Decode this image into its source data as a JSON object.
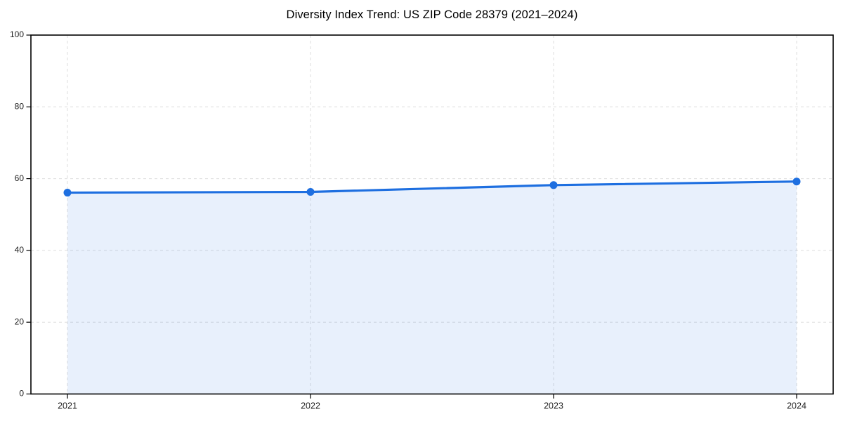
{
  "chart_data": {
    "type": "area",
    "title": "Diversity Index Trend: US ZIP Code 28379 (2021–2024)",
    "categories": [
      "2021",
      "2022",
      "2023",
      "2024"
    ],
    "series": [
      {
        "name": "Diversity Index",
        "values": [
          56.1,
          56.3,
          58.2,
          59.2
        ]
      }
    ],
    "xlabel": "",
    "ylabel": "",
    "ylim": [
      0,
      100
    ],
    "yticks": [
      0,
      20,
      40,
      60,
      80,
      100
    ],
    "grid": "dashed-both-axes",
    "legend_position": "none",
    "colors": {
      "line": "#1e6fe0",
      "marker": "#1e6fe0",
      "fill_rgba": "rgba(30,111,224,0.10)",
      "grid": "#dedede",
      "axis": "#000000",
      "tick_label": "#222222",
      "title": "#000000",
      "background": "#ffffff"
    }
  }
}
